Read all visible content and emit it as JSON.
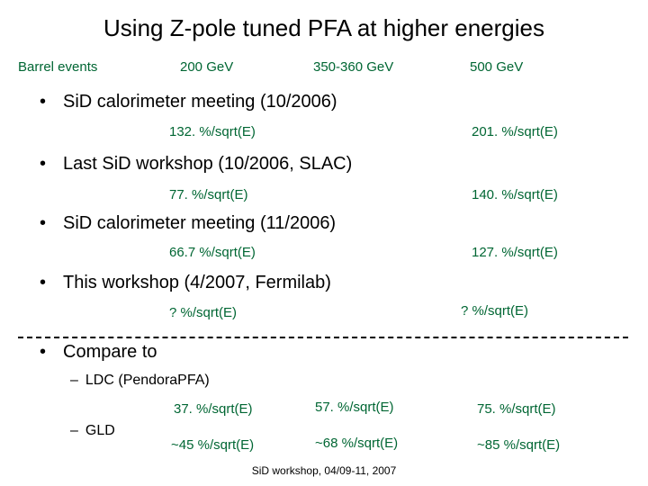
{
  "title": "Using Z-pole tuned PFA at higher energies",
  "header": {
    "row_label": "Barrel events",
    "energies": [
      "200 GeV",
      "350-360 GeV",
      "500 GeV"
    ]
  },
  "bullets": [
    {
      "text": "SiD calorimeter meeting (10/2006)",
      "v200": "132. %/sqrt(E)",
      "v500": "201. %/sqrt(E)"
    },
    {
      "text": "Last SiD workshop (10/2006, SLAC)",
      "v200": "77. %/sqrt(E)",
      "v500": "140. %/sqrt(E)"
    },
    {
      "text": "SiD calorimeter meeting (11/2006)",
      "v200": "66.7 %/sqrt(E)",
      "v500": "127. %/sqrt(E)"
    },
    {
      "text": "This workshop (4/2007, Fermilab)",
      "v200": "? %/sqrt(E)",
      "v500": "? %/sqrt(E)"
    }
  ],
  "compare": {
    "label": "Compare to",
    "ldc": {
      "label": "LDC (PendoraPFA)",
      "v200": "37. %/sqrt(E)",
      "v350": "57. %/sqrt(E)",
      "v500": "75. %/sqrt(E)"
    },
    "gld": {
      "label": "GLD",
      "v200": "~45 %/sqrt(E)",
      "v350": "~68 %/sqrt(E)",
      "v500": "~85 %/sqrt(E)"
    }
  },
  "footer": "SiD workshop, 04/09-11, 2007",
  "colors": {
    "accent": "#006633",
    "text": "#000000",
    "background": "#ffffff"
  }
}
